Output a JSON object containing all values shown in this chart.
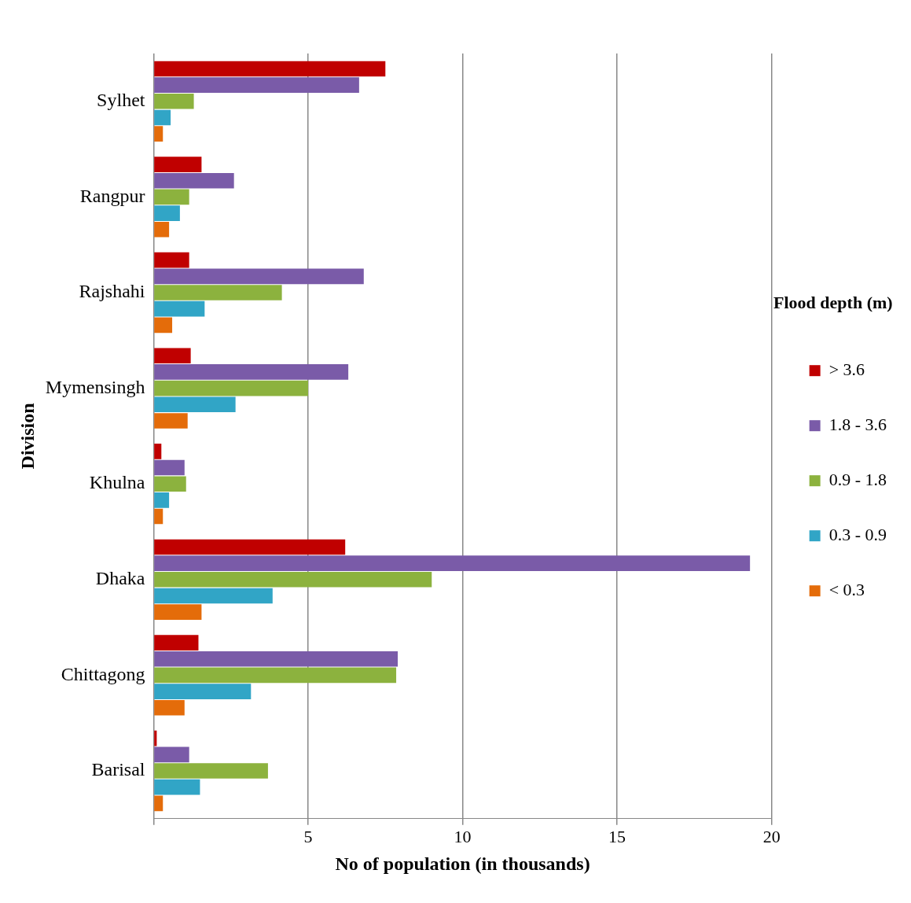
{
  "chart_data": {
    "type": "bar",
    "orientation": "horizontal",
    "xlabel": "No of population (in thousands)",
    "ylabel": "Division",
    "legend_title": "Flood depth (m)",
    "legend": "right",
    "grid": "x",
    "categories": [
      "Sylhet",
      "Rangpur",
      "Rajshahi",
      "Mymensingh",
      "Khulna",
      "Dhaka",
      "Chittagong",
      "Barisal"
    ],
    "xlim": [
      0,
      20
    ],
    "xticks": [
      {
        "value": 0,
        "label": null
      },
      5,
      10,
      15,
      20
    ],
    "series": [
      {
        "name": "> 3.6",
        "color": "#c00000",
        "values": [
          7.5,
          1.55,
          1.15,
          1.2,
          0.25,
          6.2,
          1.45,
          0.1
        ]
      },
      {
        "name": "1.8 - 3.6",
        "color": "#7a5ba8",
        "values": [
          6.65,
          2.6,
          6.8,
          6.3,
          1.0,
          19.3,
          7.9,
          1.15
        ]
      },
      {
        "name": "0.9 - 1.8",
        "color": "#8cb23e",
        "values": [
          1.3,
          1.15,
          4.15,
          5.0,
          1.05,
          9.0,
          7.85,
          3.7
        ]
      },
      {
        "name": "0.3 - 0.9",
        "color": "#31a5c6",
        "values": [
          0.55,
          0.85,
          1.65,
          2.65,
          0.5,
          3.85,
          3.15,
          1.5
        ]
      },
      {
        "name": "< 0.3",
        "color": "#e46c0a",
        "values": [
          0.3,
          0.5,
          0.6,
          1.1,
          0.3,
          1.55,
          1.0,
          0.3
        ]
      }
    ]
  }
}
